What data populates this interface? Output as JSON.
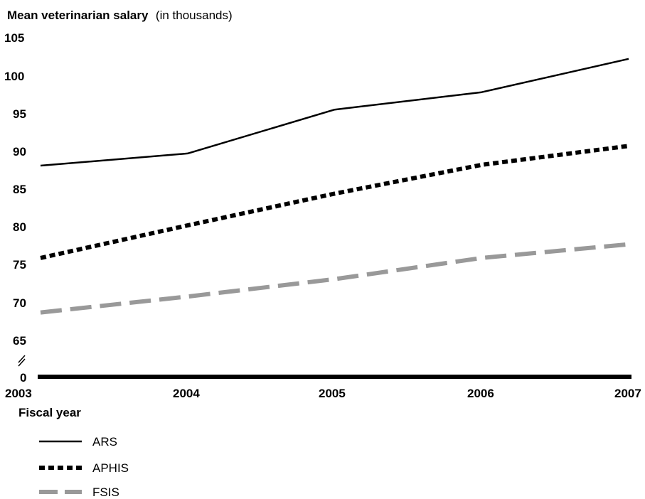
{
  "chart_data": {
    "type": "line",
    "title": "Mean veterinarian salary",
    "title_suffix": "(in thousands)",
    "xlabel": "Fiscal year",
    "ylabel": "",
    "x": [
      "2003",
      "2004",
      "2005",
      "2006",
      "2007"
    ],
    "y_ticks": [
      "105",
      "100",
      "95",
      "90",
      "85",
      "80",
      "75",
      "70",
      "65",
      "0"
    ],
    "ylim": [
      65,
      105
    ],
    "axis_break": true,
    "grid": false,
    "legend_position": "bottom-left",
    "series": [
      {
        "name": "ARS",
        "values": [
          88.1,
          89.7,
          95.5,
          97.8,
          102.2
        ],
        "color": "#000000",
        "style": "solid"
      },
      {
        "name": "APHIS",
        "values": [
          75.9,
          80.2,
          84.4,
          88.2,
          90.7
        ],
        "color": "#000000",
        "style": "dotted"
      },
      {
        "name": "FSIS",
        "values": [
          68.7,
          70.8,
          73.1,
          75.9,
          77.7
        ],
        "color": "#999999",
        "style": "dashed"
      }
    ]
  }
}
